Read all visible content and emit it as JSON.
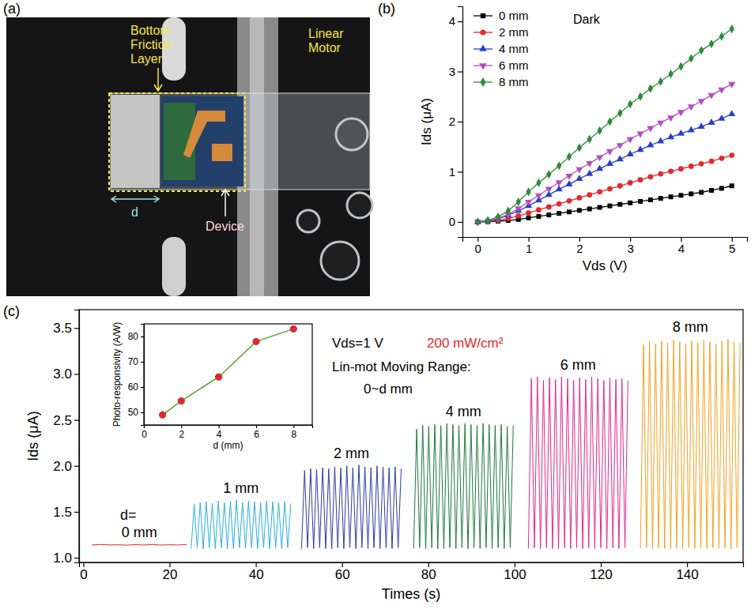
{
  "photo": {
    "panel": "(a)",
    "labels": [
      {
        "text": "Bottom Friction Layer",
        "color": "#f5e642"
      },
      {
        "text": "Linear Motor",
        "color": "#f5e642"
      },
      {
        "text": "Device",
        "color": "#f6dede"
      },
      {
        "text": "d",
        "color": "#9fe0dc"
      }
    ]
  },
  "chart_data": [
    {
      "panel": "(b)",
      "type": "line",
      "x_label": "Vds (V)",
      "y_label": "Ids (μA)",
      "annotation": "Dark",
      "legend": "upper left",
      "xlim": [
        -0.3,
        5.3
      ],
      "ylim": [
        -0.3,
        4.3
      ],
      "xticks": [
        0,
        1,
        2,
        3,
        4,
        5
      ],
      "yticks": [
        0,
        1,
        2,
        3,
        4
      ],
      "x": [
        0,
        0.2,
        0.4,
        0.6,
        0.8,
        1,
        1.2,
        1.4,
        1.6,
        1.8,
        2,
        2.2,
        2.4,
        2.6,
        2.8,
        3,
        3.2,
        3.4,
        3.6,
        3.8,
        4,
        4.2,
        4.4,
        4.6,
        4.8,
        5
      ],
      "series": [
        {
          "name": "0 mm",
          "color": "#000000",
          "marker": "square",
          "values": [
            0,
            0.005,
            0.015,
            0.03,
            0.05,
            0.08,
            0.11,
            0.14,
            0.17,
            0.2,
            0.23,
            0.26,
            0.29,
            0.32,
            0.35,
            0.38,
            0.41,
            0.44,
            0.47,
            0.5,
            0.53,
            0.56,
            0.59,
            0.63,
            0.67,
            0.72
          ]
        },
        {
          "name": "2 mm",
          "color": "#e8262d",
          "marker": "circle",
          "values": [
            0,
            0.01,
            0.03,
            0.07,
            0.12,
            0.18,
            0.24,
            0.3,
            0.36,
            0.42,
            0.48,
            0.54,
            0.6,
            0.66,
            0.72,
            0.78,
            0.84,
            0.9,
            0.96,
            1.01,
            1.06,
            1.11,
            1.16,
            1.21,
            1.27,
            1.33
          ]
        },
        {
          "name": "4 mm",
          "color": "#2a3ec8",
          "marker": "triangle-up",
          "values": [
            0,
            0.02,
            0.06,
            0.13,
            0.22,
            0.32,
            0.43,
            0.54,
            0.65,
            0.75,
            0.86,
            0.96,
            1.06,
            1.16,
            1.25,
            1.35,
            1.44,
            1.53,
            1.61,
            1.69,
            1.76,
            1.83,
            1.9,
            1.98,
            2.06,
            2.15
          ]
        },
        {
          "name": "6 mm",
          "color": "#b04ec0",
          "marker": "triangle-down",
          "values": [
            0,
            0.02,
            0.07,
            0.15,
            0.27,
            0.4,
            0.53,
            0.66,
            0.79,
            0.92,
            1.05,
            1.17,
            1.29,
            1.41,
            1.53,
            1.65,
            1.76,
            1.87,
            1.98,
            2.08,
            2.19,
            2.3,
            2.41,
            2.53,
            2.64,
            2.75
          ]
        },
        {
          "name": "8 mm",
          "color": "#2e8b3a",
          "marker": "diamond",
          "values": [
            0,
            0.03,
            0.1,
            0.22,
            0.4,
            0.6,
            0.78,
            0.95,
            1.12,
            1.3,
            1.48,
            1.65,
            1.82,
            2.0,
            2.17,
            2.35,
            2.5,
            2.66,
            2.8,
            2.95,
            3.1,
            3.26,
            3.42,
            3.55,
            3.7,
            3.85
          ]
        }
      ]
    },
    {
      "panel": "(c)",
      "type": "line",
      "x_label": "Times (s)",
      "y_label": "Ids (μA)",
      "xlim": [
        -1,
        153
      ],
      "ylim": [
        0.95,
        3.7
      ],
      "xticks": [
        0,
        20,
        40,
        60,
        80,
        100,
        120,
        140
      ],
      "yticks": [
        {
          "value": 1,
          "label": "1.0"
        },
        1.5,
        {
          "value": 2,
          "label": "2.0"
        },
        2.5,
        {
          "value": 3,
          "label": "3.0"
        },
        3.5
      ],
      "annotations": [
        {
          "text": "Vds=1 V"
        },
        {
          "text": "200 mW/cm²",
          "color": "#e8262d"
        },
        {
          "text": "Lin-mot Moving Range:"
        },
        {
          "text": "0~d mm"
        },
        {
          "text": "d="
        }
      ],
      "series": [
        {
          "name": "0 mm",
          "color": "#e8262d",
          "x": [
            2,
            4,
            6,
            8,
            10,
            12,
            14,
            16,
            18,
            20,
            22,
            24
          ],
          "values": [
            1.14,
            1.145,
            1.14,
            1.142,
            1.138,
            1.143,
            1.14,
            1.145,
            1.139,
            1.142,
            1.14,
            1.143
          ]
        },
        {
          "name": "1 mm",
          "color": "#2ab0e0",
          "x": [
            25.0,
            25.7,
            26.4,
            27.1,
            27.8,
            28.5,
            29.2,
            29.9,
            30.6,
            31.3,
            32.0,
            32.7,
            33.4,
            34.1,
            34.8,
            35.5,
            36.2,
            36.9,
            37.6,
            38.3,
            39.0,
            39.7,
            40.4,
            41.1,
            41.8,
            42.5,
            43.2,
            43.9,
            44.6,
            45.3,
            46.0,
            46.7,
            47.4,
            48.1
          ],
          "values": [
            1.1,
            1.58,
            1.11,
            1.6,
            1.1,
            1.61,
            1.11,
            1.59,
            1.1,
            1.62,
            1.11,
            1.6,
            1.1,
            1.61,
            1.1,
            1.63,
            1.11,
            1.6,
            1.1,
            1.62,
            1.11,
            1.61,
            1.1,
            1.6,
            1.11,
            1.62,
            1.1,
            1.61,
            1.11,
            1.6,
            1.1,
            1.61,
            1.11,
            1.59
          ]
        },
        {
          "name": "2 mm",
          "color": "#2b3d9e",
          "x": [
            50.6,
            51.3,
            52.0,
            52.7,
            53.4,
            54.1,
            54.8,
            55.5,
            56.2,
            56.9,
            57.6,
            58.3,
            59.0,
            59.7,
            60.4,
            61.1,
            61.8,
            62.5,
            63.2,
            63.9,
            64.6,
            65.3,
            66.0,
            66.7,
            67.4,
            68.1,
            68.8,
            69.5,
            70.2,
            70.9,
            71.6,
            72.3,
            73.0,
            73.7
          ],
          "values": [
            1.1,
            1.95,
            1.11,
            1.97,
            1.1,
            1.96,
            1.11,
            1.98,
            1.1,
            1.97,
            1.1,
            1.99,
            1.11,
            1.98,
            1.1,
            2.0,
            1.11,
            1.98,
            1.1,
            2.01,
            1.11,
            1.99,
            1.1,
            1.98,
            1.11,
            2.0,
            1.1,
            1.99,
            1.11,
            1.98,
            1.1,
            1.99,
            1.11,
            1.97
          ]
        },
        {
          "name": "4 mm",
          "color": "#1d7a3a",
          "x": [
            76.6,
            77.3,
            78.0,
            78.7,
            79.4,
            80.1,
            80.8,
            81.5,
            82.2,
            82.9,
            83.6,
            84.3,
            85.0,
            85.7,
            86.4,
            87.1,
            87.8,
            88.5,
            89.2,
            89.9,
            90.6,
            91.3,
            92.0,
            92.7,
            93.4,
            94.1,
            94.8,
            95.5,
            96.2,
            96.9,
            97.6,
            98.3,
            99.0,
            99.7
          ],
          "values": [
            1.1,
            2.4,
            1.11,
            2.44,
            1.1,
            2.43,
            1.11,
            2.45,
            1.1,
            2.44,
            1.1,
            2.46,
            1.11,
            2.45,
            1.1,
            2.44,
            1.11,
            2.46,
            1.1,
            2.45,
            1.11,
            2.44,
            1.1,
            2.46,
            1.11,
            2.45,
            1.1,
            2.44,
            1.11,
            2.45,
            1.1,
            2.43,
            1.11,
            2.44
          ]
        },
        {
          "name": "6 mm",
          "color": "#e0288a",
          "x": [
            103.2,
            103.9,
            104.6,
            105.3,
            106.0,
            106.7,
            107.4,
            108.1,
            108.8,
            109.5,
            110.2,
            110.9,
            111.6,
            112.3,
            113.0,
            113.7,
            114.4,
            115.1,
            115.8,
            116.5,
            117.2,
            117.9,
            118.6,
            119.3,
            120.0,
            120.7,
            121.4,
            122.1,
            122.8,
            123.5,
            124.2,
            124.9,
            125.6,
            126.3
          ],
          "values": [
            1.1,
            2.95,
            1.11,
            2.97,
            1.1,
            2.93,
            1.11,
            2.96,
            1.1,
            2.94,
            1.1,
            2.97,
            1.11,
            2.95,
            1.1,
            2.93,
            1.11,
            2.96,
            1.1,
            2.94,
            1.11,
            2.97,
            1.1,
            2.95,
            1.11,
            2.93,
            1.1,
            2.96,
            1.11,
            2.94,
            1.1,
            2.95,
            1.11,
            2.93
          ]
        },
        {
          "name": "8 mm",
          "color": "#f0a020",
          "x": [
            129.2,
            129.9,
            130.6,
            131.3,
            132.0,
            132.7,
            133.4,
            134.1,
            134.8,
            135.5,
            136.2,
            136.9,
            137.6,
            138.3,
            139.0,
            139.7,
            140.4,
            141.1,
            141.8,
            142.5,
            143.2,
            143.9,
            144.6,
            145.3,
            146.0,
            146.7,
            147.4,
            148.1,
            148.8,
            149.5,
            150.2,
            150.9,
            151.6,
            152.3
          ],
          "values": [
            1.1,
            3.32,
            1.11,
            3.35,
            1.1,
            3.33,
            1.11,
            3.36,
            1.1,
            3.34,
            1.1,
            3.37,
            1.11,
            3.35,
            1.1,
            3.33,
            1.11,
            3.36,
            1.1,
            3.34,
            1.11,
            3.37,
            1.1,
            3.35,
            1.11,
            3.33,
            1.1,
            3.36,
            1.11,
            3.38,
            1.1,
            3.35,
            1.11,
            3.34
          ]
        }
      ]
    },
    {
      "type": "line",
      "x_label": "d (mm)",
      "y_label": "Photo-responsivity (A/W)",
      "xlim": [
        0,
        9
      ],
      "ylim": [
        45,
        85
      ],
      "xticks": [
        0,
        2,
        4,
        6,
        8
      ],
      "yticks": [
        50,
        60,
        70,
        80
      ],
      "x": [
        1,
        2,
        4,
        6,
        8
      ],
      "series": [
        {
          "color": "#5aa02c",
          "marker": "circle",
          "colors": [
            "#e8262d",
            "#e8262d",
            "#e8262d",
            "#e8262d",
            "#e8262d"
          ],
          "values": [
            49,
            54.5,
            64,
            78,
            83
          ]
        }
      ]
    }
  ]
}
